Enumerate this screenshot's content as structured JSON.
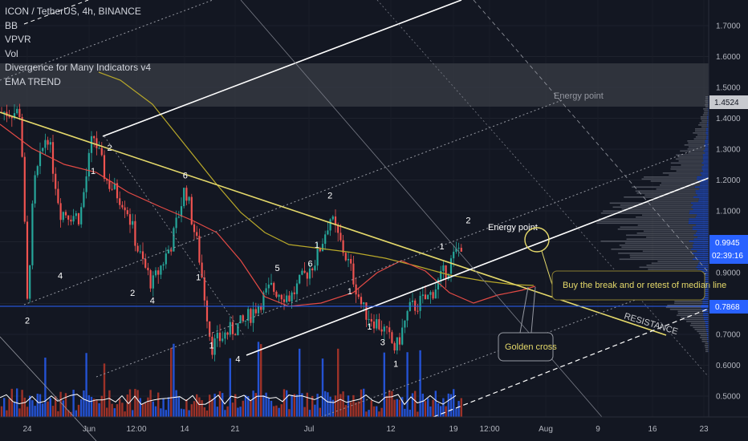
{
  "legend": {
    "symbol_line": "ICON / TetherUS, 4h, BINANCE",
    "indicators": [
      "BB",
      "VPVR",
      "Vol",
      "Divergence for Many Indicators v4",
      "EMA TREND"
    ]
  },
  "price_labels": {
    "current": "0.9945",
    "countdown": "02:39:16",
    "resistance_level": "1.4524",
    "support_level": "0.7868"
  },
  "annotations": {
    "energy_point_upper": "Energy point",
    "energy_point_lower": "Energy point",
    "buy_note": "Buy the break and or retest of median line",
    "golden_cross": "Golden cross",
    "resistance": "RESISTANCE"
  },
  "wave_labels": [
    {
      "text": "2",
      "date": "May 24",
      "price": 0.735
    },
    {
      "text": "4",
      "date": "May 29",
      "price": 0.88
    },
    {
      "text": "1",
      "date": "Jun 3",
      "price": 1.22
    },
    {
      "text": "2",
      "date": "Jun 5.5",
      "price": 1.295
    },
    {
      "text": "2",
      "date": "Jun 9",
      "price": 0.825
    },
    {
      "text": "4",
      "date": "Jun 12",
      "price": 0.8
    },
    {
      "text": "6",
      "date": "Jun 17",
      "price": 1.205
    },
    {
      "text": "1",
      "date": "Jun 19",
      "price": 0.875
    },
    {
      "text": "1",
      "date": "Jun 21",
      "price": 0.655
    },
    {
      "text": "4",
      "date": "Jun 25",
      "price": 0.61
    },
    {
      "text": "5",
      "date": "Jul 1",
      "price": 0.905
    },
    {
      "text": "6",
      "date": "Jul 6",
      "price": 0.92
    },
    {
      "text": "1",
      "date": "Jul 7",
      "price": 0.98
    },
    {
      "text": "2",
      "date": "Jul 9",
      "price": 1.14
    },
    {
      "text": "1",
      "date": "Jul 12",
      "price": 0.83
    },
    {
      "text": "1",
      "date": "Jul 15",
      "price": 0.715
    },
    {
      "text": "3",
      "date": "Jul 17",
      "price": 0.665
    },
    {
      "text": "1",
      "date": "Jul 19",
      "price": 0.595
    },
    {
      "text": "1",
      "date": "Jul 26",
      "price": 0.975
    },
    {
      "text": "2",
      "date": "Jul 30",
      "price": 1.06
    }
  ],
  "colors": {
    "background": "#131722",
    "grid": "#2a2e39",
    "trendline_yellow": "#e5d96a",
    "channel_white": "#ffffff",
    "ema_red": "#e34a45",
    "ema_slow": "#b8a82a",
    "volume_up": "#2962ff",
    "volume_down": "#c0392b",
    "profile": "#787b86",
    "current_label": "#2962ff",
    "resistance_label": "#c8cacf"
  },
  "chart_data": {
    "type": "candlestick",
    "title": "ICON / TetherUS, 4h, BINANCE",
    "x_ticks": [
      "24",
      "Jun",
      "12:00",
      "7",
      "14",
      "21",
      "Jul",
      "12",
      "19",
      "12:00",
      "Aug",
      "9",
      "16",
      "23"
    ],
    "y_ticks": [
      "1.7000",
      "1.6000",
      "1.5000",
      "1.4000",
      "1.3000",
      "1.2000",
      "1.1000",
      "1.0000",
      "0.9000",
      "0.8000",
      "0.7000",
      "0.6000",
      "0.5000"
    ],
    "ylim": [
      0.45,
      1.78
    ],
    "price_path": [
      {
        "date": "May 23",
        "price": 1.42
      },
      {
        "date": "May 24",
        "price": 0.8
      },
      {
        "date": "May 25",
        "price": 1.18
      },
      {
        "date": "May 27",
        "price": 1.36
      },
      {
        "date": "May 29",
        "price": 1.1
      },
      {
        "date": "Jun 1",
        "price": 1.08
      },
      {
        "date": "Jun 3",
        "price": 1.35
      },
      {
        "date": "Jun 5",
        "price": 1.2
      },
      {
        "date": "Jun 8",
        "price": 1.12
      },
      {
        "date": "Jun 10",
        "price": 0.96
      },
      {
        "date": "Jun 12",
        "price": 0.86
      },
      {
        "date": "Jun 15",
        "price": 1.0
      },
      {
        "date": "Jun 17",
        "price": 1.18
      },
      {
        "date": "Jun 19",
        "price": 0.97
      },
      {
        "date": "Jun 21",
        "price": 0.66
      },
      {
        "date": "Jun 23",
        "price": 0.7
      },
      {
        "date": "Jun 26",
        "price": 0.74
      },
      {
        "date": "Jun 30",
        "price": 0.85
      },
      {
        "date": "Jul 3",
        "price": 0.82
      },
      {
        "date": "Jul 7",
        "price": 0.95
      },
      {
        "date": "Jul 9",
        "price": 1.08
      },
      {
        "date": "Jul 12",
        "price": 0.92
      },
      {
        "date": "Jul 14",
        "price": 0.78
      },
      {
        "date": "Jul 17",
        "price": 0.72
      },
      {
        "date": "Jul 19",
        "price": 0.65
      },
      {
        "date": "Jul 21",
        "price": 0.78
      },
      {
        "date": "Jul 24",
        "price": 0.82
      },
      {
        "date": "Jul 27",
        "price": 0.92
      },
      {
        "date": "Jul 29",
        "price": 0.9945
      }
    ],
    "resistance_zone": [
      1.4524,
      1.58
    ],
    "support_level": 0.7868,
    "current_price": 0.9945
  }
}
